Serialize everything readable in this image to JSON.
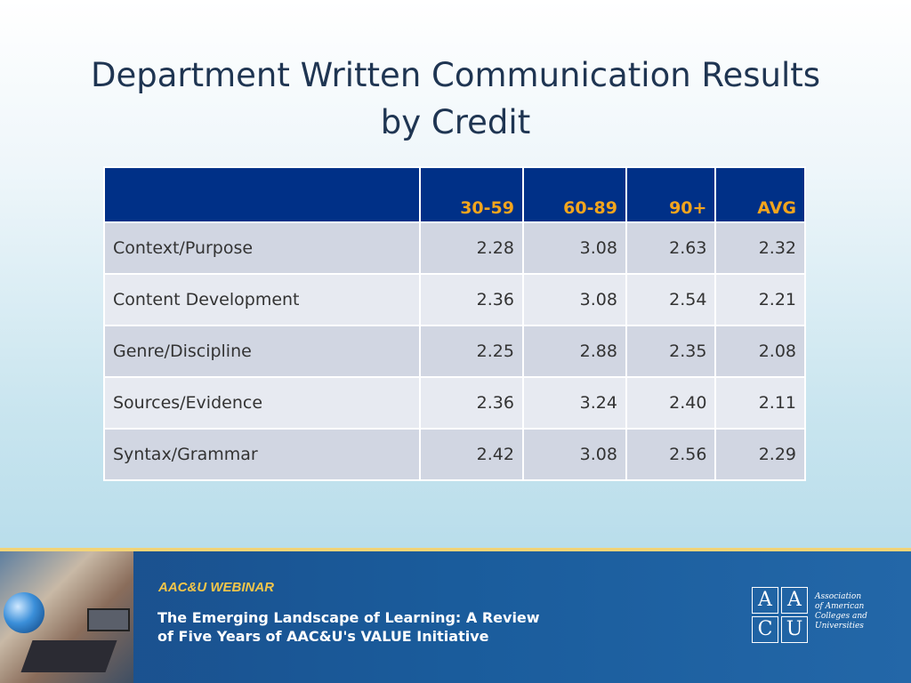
{
  "title": {
    "line1": "Department Written Communication Results",
    "line2": "by Credit"
  },
  "table": {
    "headers": [
      "",
      "30-59",
      "60-89",
      "90+",
      "AVG"
    ],
    "rows": [
      {
        "label": "Context/Purpose",
        "values": [
          "2.28",
          "3.08",
          "2.63",
          "2.32"
        ]
      },
      {
        "label": "Content Development",
        "values": [
          "2.36",
          "3.08",
          "2.54",
          "2.21"
        ]
      },
      {
        "label": "Genre/Discipline",
        "values": [
          "2.25",
          "2.88",
          "2.35",
          "2.08"
        ]
      },
      {
        "label": "Sources/Evidence",
        "values": [
          "2.36",
          "3.24",
          "2.40",
          "2.11"
        ]
      },
      {
        "label": "Syntax/Grammar",
        "values": [
          "2.42",
          "3.08",
          "2.56",
          "2.29"
        ]
      }
    ]
  },
  "footer": {
    "webinar_label": "AAC&U WEBINAR",
    "subtitle_line1": "The Emerging Landscape of Learning: A Review",
    "subtitle_line2": "of Five Years of AAC&U's VALUE Initiative",
    "logo_letters": [
      "A",
      "A",
      "C",
      "U"
    ],
    "org_name": [
      "Association",
      "of American",
      "Colleges and",
      "Universities"
    ]
  },
  "colors": {
    "header_bg": "#003087",
    "header_text": "#f3a51d",
    "footer_bg": "#1a5c9c",
    "footer_accent": "#f3c64a"
  }
}
